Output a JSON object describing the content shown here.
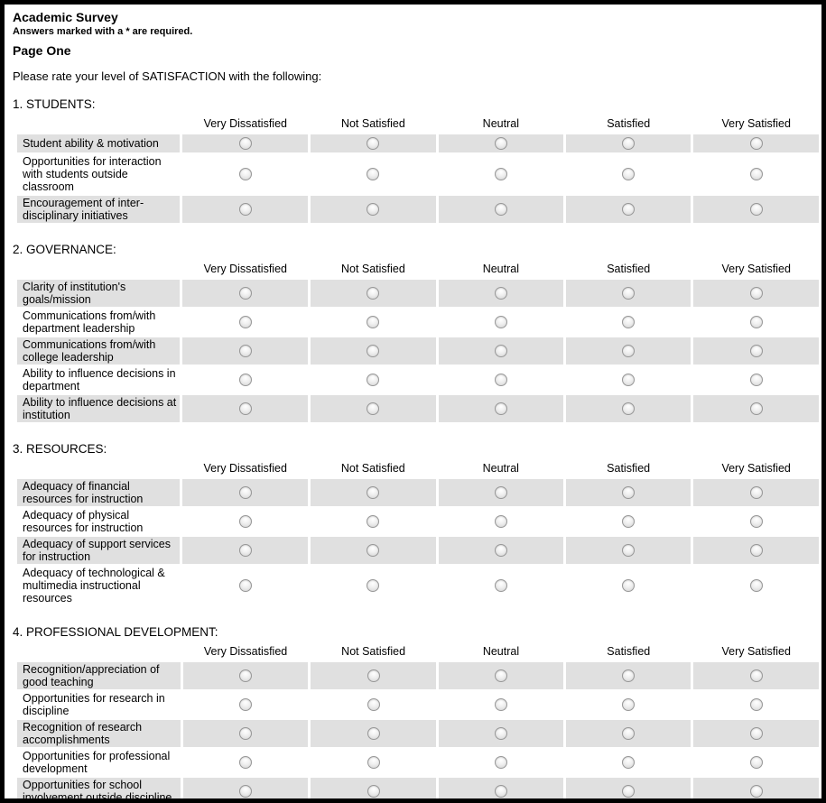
{
  "header": {
    "title": "Academic Survey",
    "required_note": "Answers marked with a * are required.",
    "page_label": "Page One",
    "intro": "Please rate your level of SATISFACTION with the following:"
  },
  "scale": [
    "Very Dissatisfied",
    "Not Satisfied",
    "Neutral",
    "Satisfied",
    "Very Satisfied"
  ],
  "sections": [
    {
      "heading": "1. STUDENTS:",
      "rows": [
        "Student ability & motivation",
        "Opportunities for interaction with students outside classroom",
        "Encouragement of inter-disciplinary initiatives"
      ]
    },
    {
      "heading": "2. GOVERNANCE:",
      "rows": [
        "Clarity of institution's goals/mission",
        "Communications from/with department leadership",
        "Communications from/with college leadership",
        "Ability to influence decisions in department",
        "Ability to influence decisions at institution"
      ]
    },
    {
      "heading": "3. RESOURCES:",
      "rows": [
        "Adequacy of financial resources for instruction",
        "Adequacy of physical resources for instruction",
        "Adequacy of support services for instruction",
        "Adequacy of technological & multimedia instructional resources"
      ]
    },
    {
      "heading": "4. PROFESSIONAL DEVELOPMENT:",
      "rows": [
        "Recognition/appreciation of good teaching",
        "Opportunities for research in discipline",
        "Recognition of research accomplishments",
        "Opportunities for professional development",
        "Opportunities for school involvement outside discipline"
      ]
    }
  ],
  "colors": {
    "row_shade": "#e0e0e0",
    "page_border": "#000000",
    "radio_border": "#979797"
  }
}
